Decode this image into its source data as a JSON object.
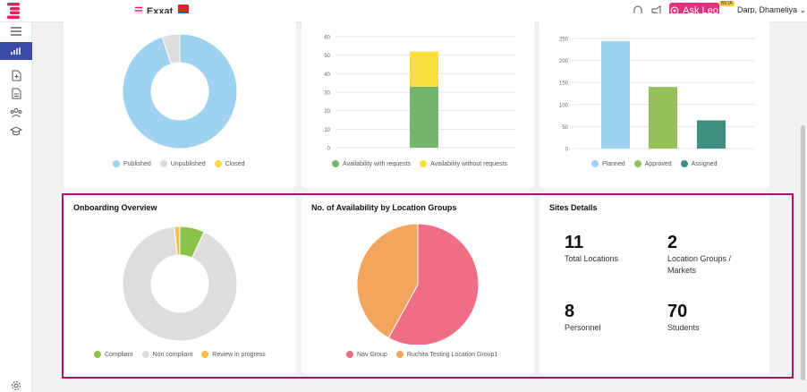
{
  "header": {
    "brand": "Exxat",
    "ask_leo": "Ask Leo",
    "beta": "BETA",
    "user": "Darp, Dhameliya",
    "icons": [
      "bell-icon",
      "megaphone-icon",
      "sparkle-icon",
      "chevron-down-icon"
    ]
  },
  "sidebar": {
    "items": [
      "menu-icon",
      "bar-chart-icon",
      "add-document-icon",
      "document-icon",
      "people-icon",
      "graduation-cap-icon",
      "settings-icon"
    ],
    "active": "bar-chart-icon"
  },
  "cards": {
    "top_left": {
      "legend": [
        "Published",
        "Unpublished",
        "Closed"
      ],
      "colors": [
        "#9fd2f1",
        "#dddddd",
        "#f8d84c"
      ]
    },
    "top_mid": {
      "legend": [
        "Availability with requests",
        "Availability without requests"
      ],
      "colors": [
        "#75b66e",
        "#fadf3f"
      ]
    },
    "top_right": {
      "legend": [
        "Planned",
        "Approved",
        "Assigned"
      ],
      "colors": [
        "#9fd2f1",
        "#95c15a",
        "#3d8f80"
      ]
    },
    "onboarding": {
      "title": "Onboarding Overview",
      "legend": [
        "Compliant",
        "Non compliant",
        "Review in progress"
      ],
      "colors": [
        "#8bc34a",
        "#dddddd",
        "#f6c244"
      ]
    },
    "availability_groups": {
      "title": "No. of Availability by Location Groups",
      "legend": [
        "Nav Group",
        "Ruchita Testing Location Group1"
      ],
      "colors": [
        "#ee6e85",
        "#f2a55c"
      ]
    },
    "sites": {
      "title": "Sites Details",
      "stats": [
        {
          "value": "11",
          "label": "Total Locations"
        },
        {
          "value": "2",
          "label": "Location Groups / Markets"
        },
        {
          "value": "8",
          "label": "Personnel"
        },
        {
          "value": "70",
          "label": "Students"
        }
      ]
    }
  },
  "chart_data": [
    {
      "type": "pie",
      "variant": "doughnut",
      "labels": [
        "Published",
        "Unpublished",
        "Closed"
      ],
      "values": [
        95,
        5,
        0
      ],
      "colors": [
        "#9fd2f1",
        "#dddddd",
        "#f8d84c"
      ]
    },
    {
      "type": "bar",
      "stacked": true,
      "categories": [
        ""
      ],
      "series": [
        {
          "name": "Availability with requests",
          "values": [
            33
          ]
        },
        {
          "name": "Availability without requests",
          "values": [
            19
          ]
        }
      ],
      "ylim": [
        0,
        60
      ],
      "yticks": [
        0,
        10,
        20,
        30,
        40,
        50,
        60
      ],
      "grid": true
    },
    {
      "type": "bar",
      "categories": [
        "Planned",
        "Approved",
        "Assigned"
      ],
      "values": [
        244,
        140,
        64
      ],
      "colors": [
        "#9fd2f1",
        "#95c15a",
        "#3d8f80"
      ],
      "ylim": [
        0,
        250
      ],
      "yticks": [
        0,
        50,
        100,
        150,
        200,
        250
      ],
      "grid": true
    },
    {
      "type": "pie",
      "variant": "doughnut",
      "labels": [
        "Compliant",
        "Non compliant",
        "Review in progress"
      ],
      "values": [
        7,
        91.5,
        1.5
      ],
      "colors": [
        "#8bc34a",
        "#dddddd",
        "#f6c244"
      ]
    },
    {
      "type": "pie",
      "labels": [
        "Nav Group",
        "Ruchita Testing Location Group1"
      ],
      "values": [
        58,
        42
      ],
      "colors": [
        "#ee6e85",
        "#f2a55c"
      ]
    }
  ]
}
